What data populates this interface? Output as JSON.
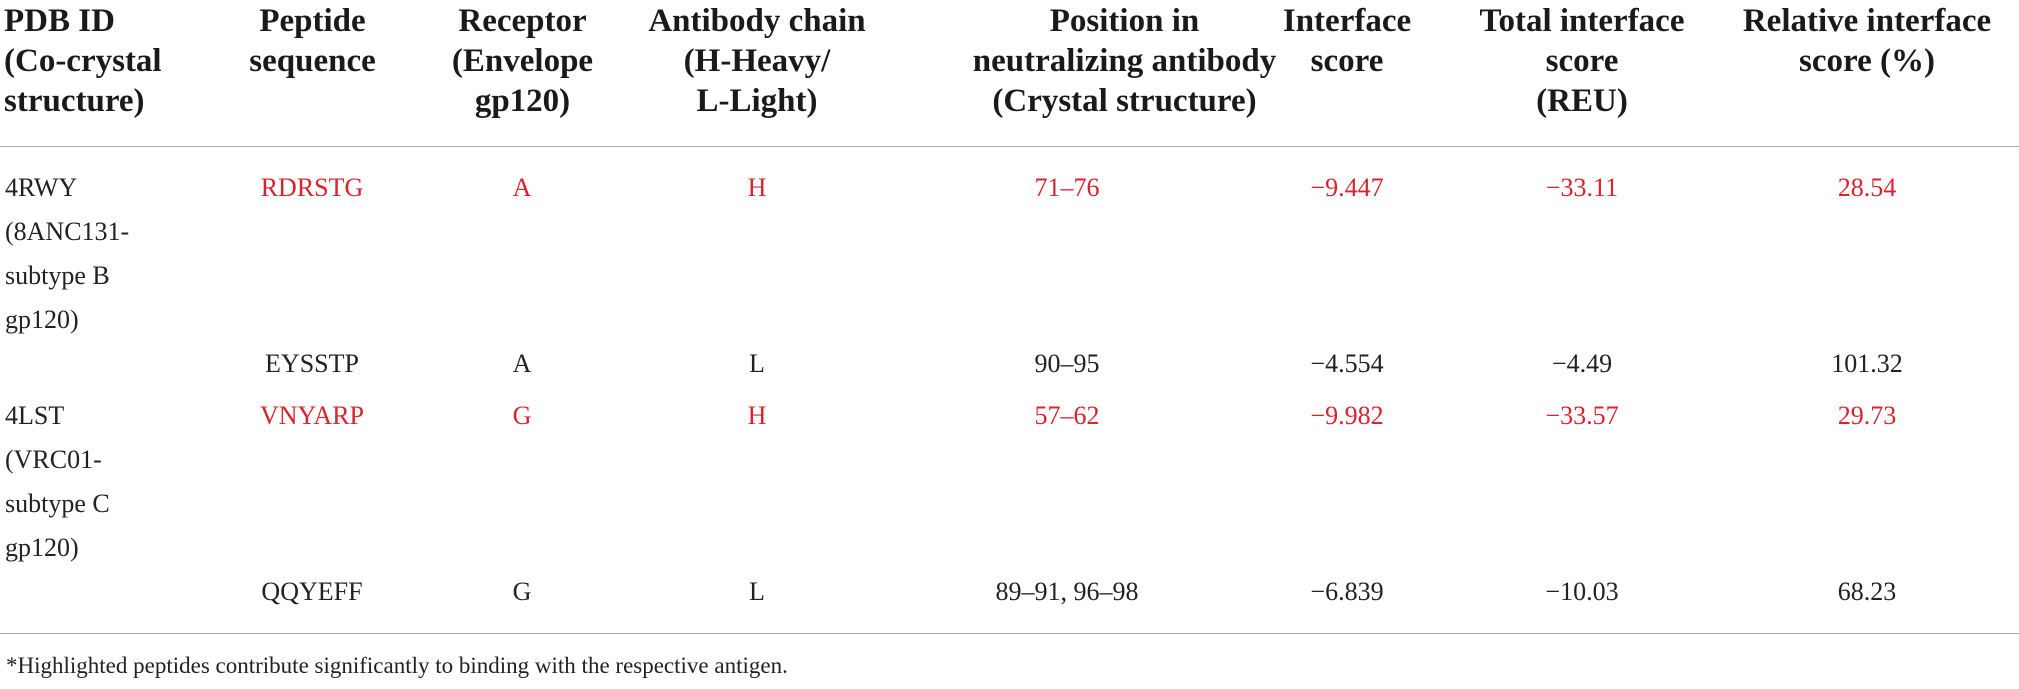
{
  "table": {
    "headers": [
      [
        "PDB ID",
        "(Co-crystal",
        "structure)"
      ],
      [
        "Peptide",
        "sequence"
      ],
      [
        "Receptor",
        "(Envelope",
        "gp120)"
      ],
      [
        "Antibody chain",
        "(H-Heavy/",
        "L-Light)"
      ],
      [
        "Position in",
        "neutralizing antibody",
        "(Crystal structure)"
      ],
      [
        "Interface",
        "score"
      ],
      [
        "Total interface",
        "score",
        "(REU)"
      ],
      [
        "Relative interface",
        "score (%)"
      ]
    ],
    "groups": [
      {
        "pdb_lines": [
          "4RWY",
          "(8ANC131-",
          "subtype B",
          "gp120)"
        ],
        "rows": [
          {
            "highlighted": true,
            "cells": [
              "RDRSTG",
              "A",
              "H",
              "71–76",
              "−9.447",
              "−33.11",
              "28.54"
            ]
          },
          {
            "highlighted": false,
            "cells": [
              "EYSSTP",
              "A",
              "L",
              "90–95",
              "−4.554",
              "−4.49",
              "101.32"
            ]
          }
        ]
      },
      {
        "pdb_lines": [
          "4LST",
          "(VRC01-",
          "subtype C",
          "gp120)"
        ],
        "rows": [
          {
            "highlighted": true,
            "cells": [
              "VNYARP",
              "G",
              "H",
              "57–62",
              "−9.982",
              "−33.57",
              "29.73"
            ]
          },
          {
            "highlighted": false,
            "cells": [
              "QQYEFF",
              "G",
              "L",
              "89–91, 96–98",
              "−6.839",
              "−10.03",
              "68.23"
            ]
          }
        ]
      }
    ],
    "highlight_color": "#d9232d"
  },
  "footnote": "*Highlighted peptides contribute significantly to binding with the respective antigen."
}
